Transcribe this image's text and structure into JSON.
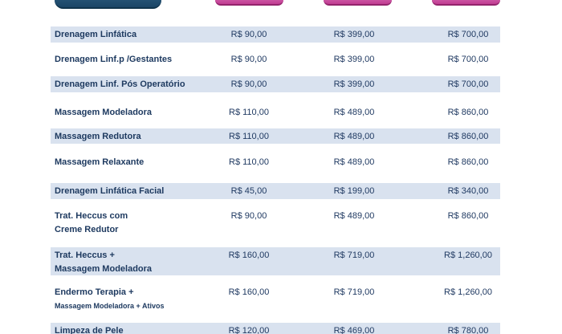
{
  "header": {
    "service_tab": {
      "label": ""
    },
    "price_pills": [
      "",
      "",
      ""
    ]
  },
  "colors": {
    "dark_pill": "#1d4a6b",
    "pink_pill": "#c13d93",
    "row_stripe": "#d9e2ef",
    "service_text": "#1e3a60",
    "price_text": "#203a62"
  },
  "table": {
    "rows": [
      {
        "name": "Drenagem Linfática",
        "prices": [
          "R$ 90,00",
          "R$ 399,00",
          "R$ 700,00"
        ]
      },
      {
        "name": "Drenagem Linf.p /Gestantes",
        "prices": [
          "R$ 90,00",
          "R$ 399,00",
          "R$ 700,00"
        ]
      },
      {
        "name": "Drenagem Linf. Pós Operatório",
        "prices": [
          "R$ 90,00",
          "R$ 399,00",
          "R$ 700,00"
        ]
      },
      {
        "name": "Massagem Modeladora",
        "prices": [
          "R$ 110,00",
          "R$ 489,00",
          "R$ 860,00"
        ]
      },
      {
        "name": "Massagem Redutora",
        "prices": [
          "R$ 110,00",
          "R$ 489,00",
          "R$ 860,00"
        ]
      },
      {
        "name": "Massagem Relaxante",
        "prices": [
          "R$ 110,00",
          "R$ 489,00",
          "R$ 860,00"
        ]
      },
      {
        "name": "Drenagem Linfática Facial",
        "prices": [
          "R$ 45,00",
          "R$ 199,00",
          "R$ 340,00"
        ]
      },
      {
        "name": "Trat. Heccus com",
        "name2": "Creme Redutor",
        "prices": [
          "R$ 90,00",
          "R$ 489,00",
          "R$ 860,00"
        ]
      },
      {
        "name": "Trat. Heccus +",
        "name2": "Massagem Modeladora",
        "prices": [
          "R$ 160,00",
          "R$ 719,00",
          "R$ 1,260,00"
        ]
      },
      {
        "name": "Endermo Terapia +",
        "name2": "Massagem Modeladora + Ativos",
        "name2_small": true,
        "prices": [
          "R$ 160,00",
          "R$ 719,00",
          "R$ 1,260,00"
        ]
      },
      {
        "name": "Limpeza de Pele",
        "prices": [
          "R$ 120,00",
          "R$ 469,00",
          "R$ 780,00"
        ]
      }
    ]
  }
}
